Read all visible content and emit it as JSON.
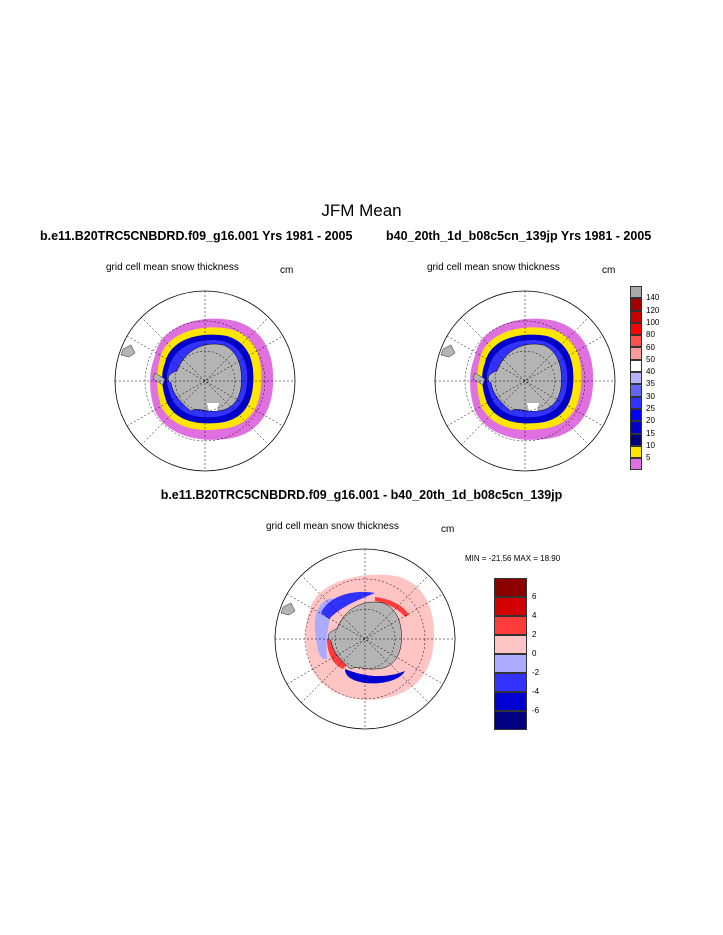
{
  "title": "JFM Mean",
  "experiments": {
    "left": "b.e11.B20TRC5CNBDRD.f09_g16.001  Yrs 1981 - 2005",
    "right": "b40_20th_1d_b08c5cn_139jp  Yrs 1981 - 2005",
    "difference": "b.e11.B20TRC5CNBDRD.f09_g16.001 - b40_20th_1d_b08c5cn_139jp"
  },
  "panels": {
    "left": {
      "variable": "grid cell mean snow thickness",
      "units": "cm"
    },
    "right": {
      "variable": "grid cell mean snow thickness",
      "units": "cm"
    },
    "diff": {
      "variable": "grid cell mean snow thickness",
      "units": "cm",
      "stats": "MIN = -21.56 MAX =  18.90"
    }
  },
  "colorbar_main": {
    "labels": [
      "140",
      "120",
      "100",
      "80",
      "60",
      "50",
      "40",
      "35",
      "30",
      "25",
      "20",
      "15",
      "10",
      "5"
    ],
    "colors": [
      "#aaaaaa",
      "#a50000",
      "#c80000",
      "#ff0000",
      "#ff5050",
      "#ff9a9a",
      "#ffffff",
      "#b4b4ff",
      "#6464ff",
      "#3232ff",
      "#0000ff",
      "#0000c8",
      "#000078",
      "#ffe600",
      "#e070e0"
    ]
  },
  "colorbar_diff": {
    "labels": [
      "6",
      "4",
      "2",
      "0",
      "-2",
      "-4",
      "-6"
    ],
    "colors": [
      "#8c0000",
      "#d20000",
      "#ff3c3c",
      "#ffc4c4",
      "#aaaaff",
      "#3232ff",
      "#0000d2",
      "#000080"
    ]
  }
}
